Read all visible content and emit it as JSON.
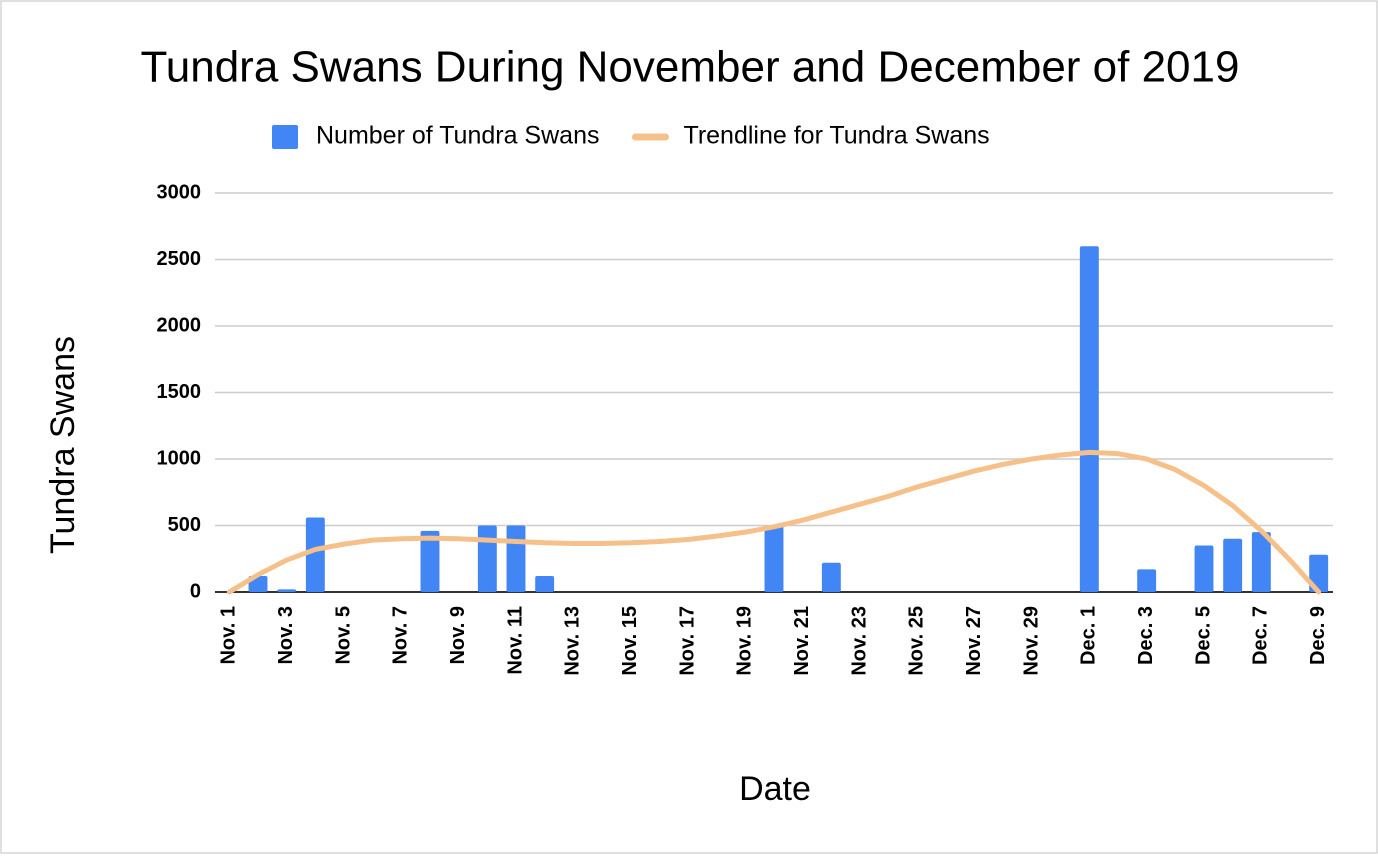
{
  "chart_data": {
    "type": "bar",
    "title": "Tundra Swans During November and December of 2019",
    "x_label": "Date",
    "y_label": "Tundra Swans",
    "categories": [
      "Nov. 1",
      null,
      "Nov. 3",
      null,
      "Nov. 5",
      null,
      "Nov. 7",
      null,
      "Nov. 9",
      null,
      "Nov. 11",
      null,
      "Nov. 13",
      null,
      "Nov. 15",
      null,
      "Nov. 17",
      null,
      "Nov. 19",
      null,
      "Nov. 21",
      null,
      "Nov. 23",
      null,
      "Nov. 25",
      null,
      "Nov. 27",
      null,
      "Nov. 29",
      null,
      "Dec. 1",
      null,
      "Dec. 3",
      null,
      "Dec. 5",
      null,
      "Dec. 7",
      null,
      "Dec. 9"
    ],
    "series": [
      {
        "name": "Number of Tundra Swans",
        "type": "bar",
        "color": "#4285f4",
        "values": [
          0,
          120,
          20,
          560,
          0,
          0,
          0,
          460,
          0,
          500,
          500,
          120,
          0,
          0,
          0,
          0,
          0,
          0,
          0,
          500,
          0,
          220,
          0,
          0,
          0,
          0,
          0,
          0,
          0,
          0,
          2600,
          0,
          170,
          0,
          350,
          400,
          450,
          0,
          280
        ]
      },
      {
        "name": "Trendline for Tundra Swans",
        "type": "line",
        "color": "#f6c08a",
        "values": [
          0,
          130,
          240,
          320,
          360,
          390,
          400,
          405,
          400,
          390,
          380,
          370,
          365,
          365,
          370,
          380,
          395,
          420,
          450,
          490,
          540,
          600,
          660,
          720,
          790,
          850,
          910,
          960,
          1000,
          1030,
          1050,
          1040,
          1000,
          920,
          800,
          650,
          460,
          240,
          0
        ]
      }
    ],
    "ylim": [
      0,
      3000
    ],
    "yticks": [
      0,
      500,
      1000,
      1500,
      2000,
      2500,
      3000
    ],
    "grid": true,
    "legend": "top"
  }
}
